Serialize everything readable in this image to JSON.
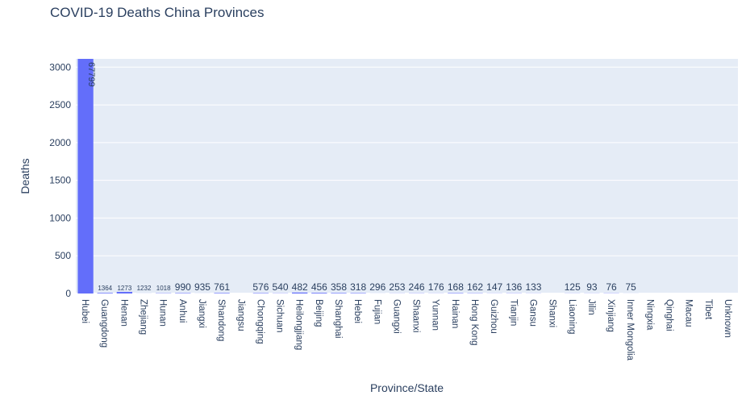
{
  "title": "COVID-19 Deaths China Provinces",
  "colors": {
    "plot_bg": "#e5ecf6",
    "bar": "#636efa",
    "grid": "#ffffff",
    "text": "#2a3f5f"
  },
  "chart_data": {
    "type": "bar",
    "title": "COVID-19 Deaths China Provinces",
    "xlabel": "Province/State",
    "ylabel": "Deaths",
    "ylim": [
      0,
      3110
    ],
    "yticks": [
      0,
      500,
      1000,
      1500,
      2000,
      2500,
      3000
    ],
    "grid": true,
    "categories": [
      "Hubei",
      "Guangdong",
      "Henan",
      "Zhejiang",
      "Hunan",
      "Anhui",
      "Jiangxi",
      "Shandong",
      "Jiangsu",
      "Chongqing",
      "Sichuan",
      "Heilongjiang",
      "Beijing",
      "Shanghai",
      "Hebei",
      "Fujian",
      "Guangxi",
      "Shaanxi",
      "Yunnan",
      "Hainan",
      "Hong Kong",
      "Guizhou",
      "Tianjin",
      "Gansu",
      "Shanxi",
      "Liaoning",
      "Jilin",
      "Xinjiang",
      "Inner Mongolia",
      "Ningxia",
      "Qinghai",
      "Macau",
      "Tibet",
      "Unknown"
    ],
    "values": [
      3110,
      8,
      22,
      1,
      4,
      6,
      1,
      7,
      0,
      6,
      3,
      13,
      9,
      7,
      6,
      1,
      2,
      3,
      2,
      6,
      4,
      2,
      3,
      2,
      0,
      2,
      2,
      3,
      1,
      0,
      0,
      0,
      0,
      0
    ],
    "data_labels": [
      "67799",
      "1364",
      "1273",
      "1232",
      "1018",
      "990",
      "935",
      "761",
      "",
      "576",
      "540",
      "482",
      "456",
      "358",
      "318",
      "296",
      "253",
      "246",
      "176",
      "168",
      "162",
      "147",
      "136",
      "133",
      "",
      "125",
      "93",
      "76",
      "75",
      "",
      "",
      "",
      "",
      ""
    ]
  }
}
